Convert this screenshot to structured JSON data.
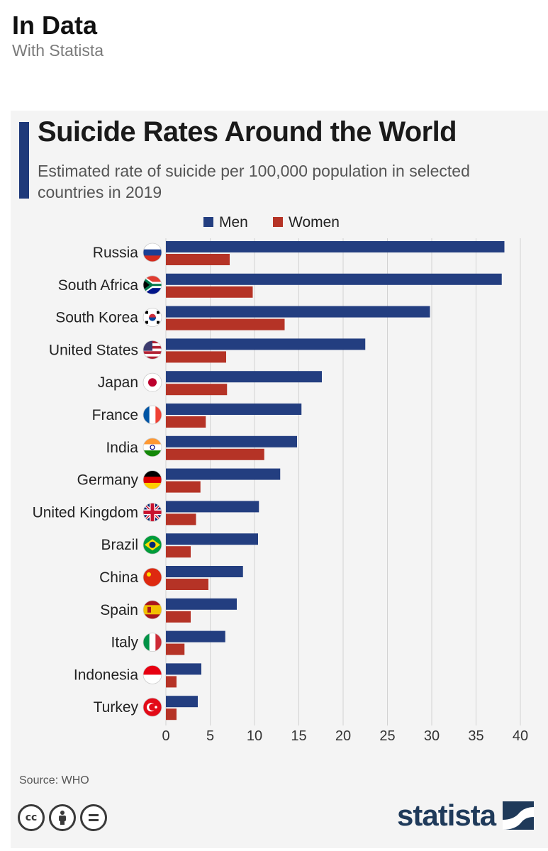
{
  "header": {
    "title": "In Data",
    "subtitle": "With Statista"
  },
  "card": {
    "source": "Source: WHO",
    "brand": "statista"
  },
  "colors": {
    "men": "#233e80",
    "women": "#b53326",
    "accent": "#1f3a7a"
  },
  "chart_data": {
    "type": "bar",
    "orientation": "horizontal",
    "title": "Suicide Rates Around the World",
    "subtitle": "Estimated rate of suicide per 100,000 population in selected countries in 2019",
    "legend_position": "top",
    "xlim": [
      0,
      40
    ],
    "x_ticks": [
      0,
      5,
      10,
      15,
      20,
      25,
      30,
      35,
      40
    ],
    "categories": [
      "Russia",
      "South Africa",
      "South Korea",
      "United States",
      "Japan",
      "France",
      "India",
      "Germany",
      "United Kingdom",
      "Brazil",
      "China",
      "Spain",
      "Italy",
      "Indonesia",
      "Turkey"
    ],
    "flag_icons": [
      "russia-flag-icon",
      "south-africa-flag-icon",
      "south-korea-flag-icon",
      "united-states-flag-icon",
      "japan-flag-icon",
      "france-flag-icon",
      "india-flag-icon",
      "germany-flag-icon",
      "united-kingdom-flag-icon",
      "brazil-flag-icon",
      "china-flag-icon",
      "spain-flag-icon",
      "italy-flag-icon",
      "indonesia-flag-icon",
      "turkey-flag-icon"
    ],
    "series": [
      {
        "name": "Men",
        "values": [
          38.2,
          37.9,
          29.8,
          22.5,
          17.6,
          15.3,
          14.8,
          12.9,
          10.5,
          10.4,
          8.7,
          8.0,
          6.7,
          4.0,
          3.6
        ]
      },
      {
        "name": "Women",
        "values": [
          7.2,
          9.8,
          13.4,
          6.8,
          6.9,
          4.5,
          11.1,
          3.9,
          3.4,
          2.8,
          4.8,
          2.8,
          2.1,
          1.2,
          1.2
        ]
      }
    ]
  }
}
